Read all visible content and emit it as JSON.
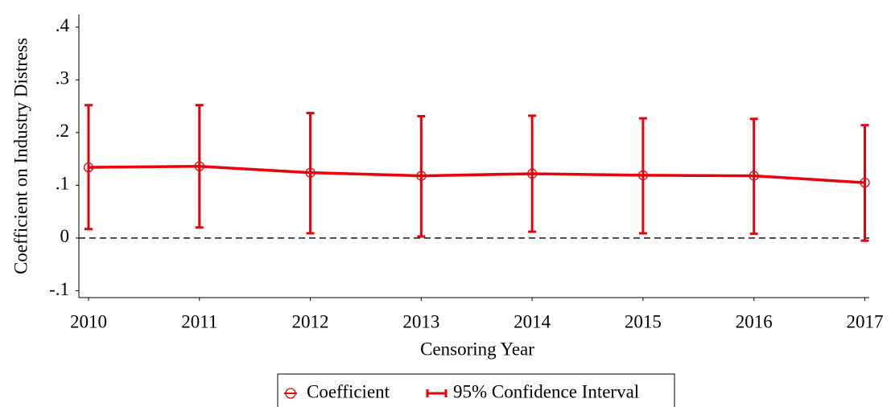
{
  "chart_data": {
    "type": "line",
    "x_label": "Censoring Year",
    "y_label": "Coefficient on Industry Distress",
    "x": [
      2010,
      2011,
      2012,
      2013,
      2014,
      2015,
      2016,
      2017
    ],
    "series": [
      {
        "name": "Coefficient",
        "color": "#e8000b",
        "values": [
          0.134,
          0.136,
          0.124,
          0.118,
          0.122,
          0.119,
          0.118,
          0.105
        ],
        "lower": [
          0.017,
          0.02,
          0.009,
          0.003,
          0.012,
          0.009,
          0.008,
          -0.005
        ],
        "upper": [
          0.252,
          0.252,
          0.237,
          0.231,
          0.232,
          0.227,
          0.226,
          0.214
        ],
        "interval_name": "95% Confidence Interval"
      }
    ],
    "reference_line": 0,
    "xlim": [
      2009.913,
      2017.04
    ],
    "xticks": [
      2010,
      2011,
      2012,
      2013,
      2014,
      2015,
      2016,
      2017
    ],
    "ylim": [
      -0.113,
      0.424
    ],
    "yticks": [
      {
        "value": -0.1,
        "label": "-.1"
      },
      0,
      {
        "value": 0.1,
        "label": ".1"
      },
      {
        "value": 0.2,
        "label": ".2"
      },
      {
        "value": 0.3,
        "label": ".3"
      },
      {
        "value": 0.4,
        "label": ".4"
      }
    ],
    "legend": "bottom"
  }
}
